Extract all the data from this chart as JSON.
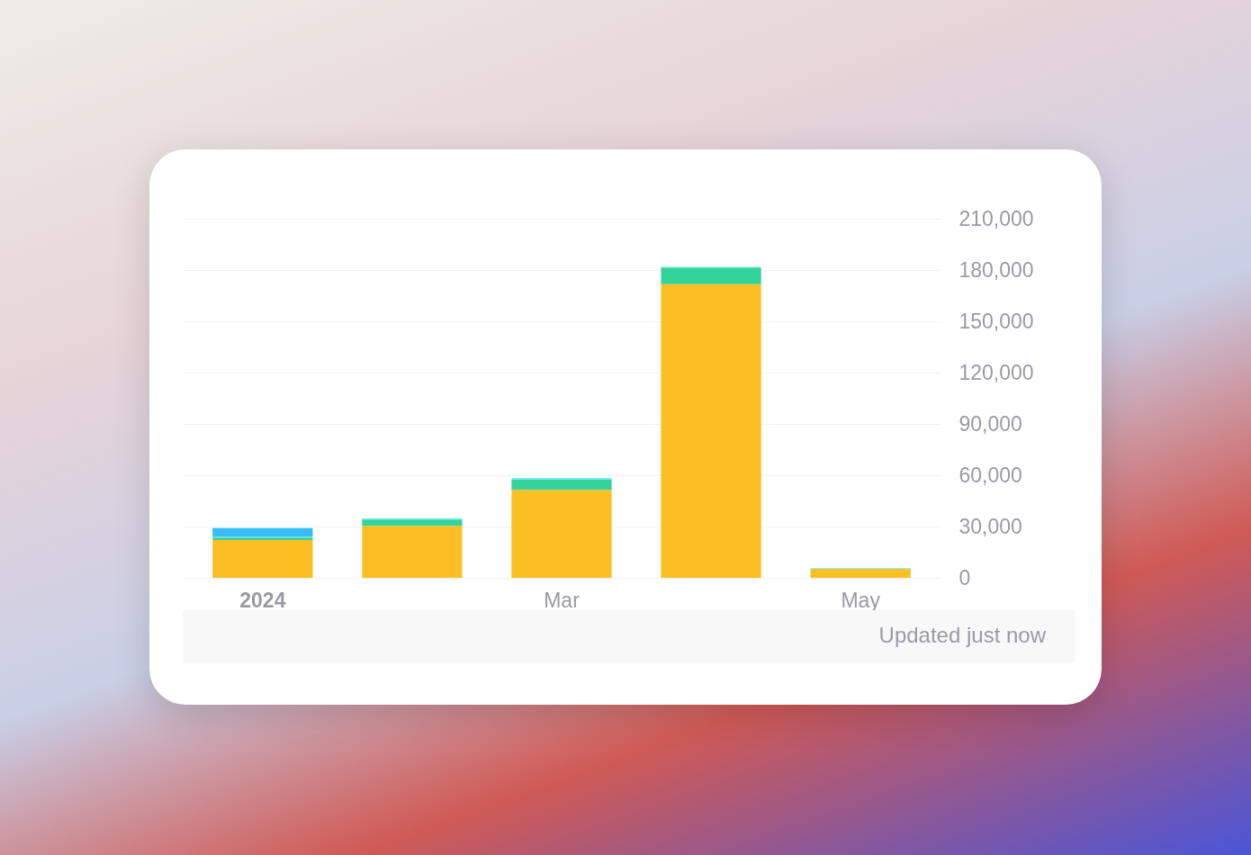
{
  "chart_data": {
    "type": "bar",
    "stacked": true,
    "categories": [
      "2024",
      null,
      "Mar",
      null,
      "May"
    ],
    "series": [
      {
        "color": "#fbbf24",
        "values": [
          22100,
          30400,
          51400,
          171700,
          5100
        ]
      },
      {
        "color": "#34d399",
        "values": [
          1500,
          3700,
          6100,
          9700,
          300
        ]
      },
      {
        "color": "#67e8f9",
        "values": [
          500,
          700,
          900,
          500,
          300
        ]
      },
      {
        "color": "#38bdf8",
        "values": [
          5000,
          null,
          null,
          null,
          null
        ]
      }
    ],
    "ylim": [
      0,
      210000
    ],
    "yticks": [
      0,
      {
        "value": 30000,
        "label": "30,000"
      },
      {
        "value": 60000,
        "label": "60,000"
      },
      {
        "value": 90000,
        "label": "90,000"
      },
      {
        "value": 120000,
        "label": "120,000"
      },
      {
        "value": 150000,
        "label": "150,000"
      },
      {
        "value": 180000,
        "label": "180,000"
      },
      {
        "value": 210000,
        "label": "210,000"
      }
    ],
    "grid": "y",
    "legend": false,
    "annotations": [
      "Updated just now"
    ]
  }
}
